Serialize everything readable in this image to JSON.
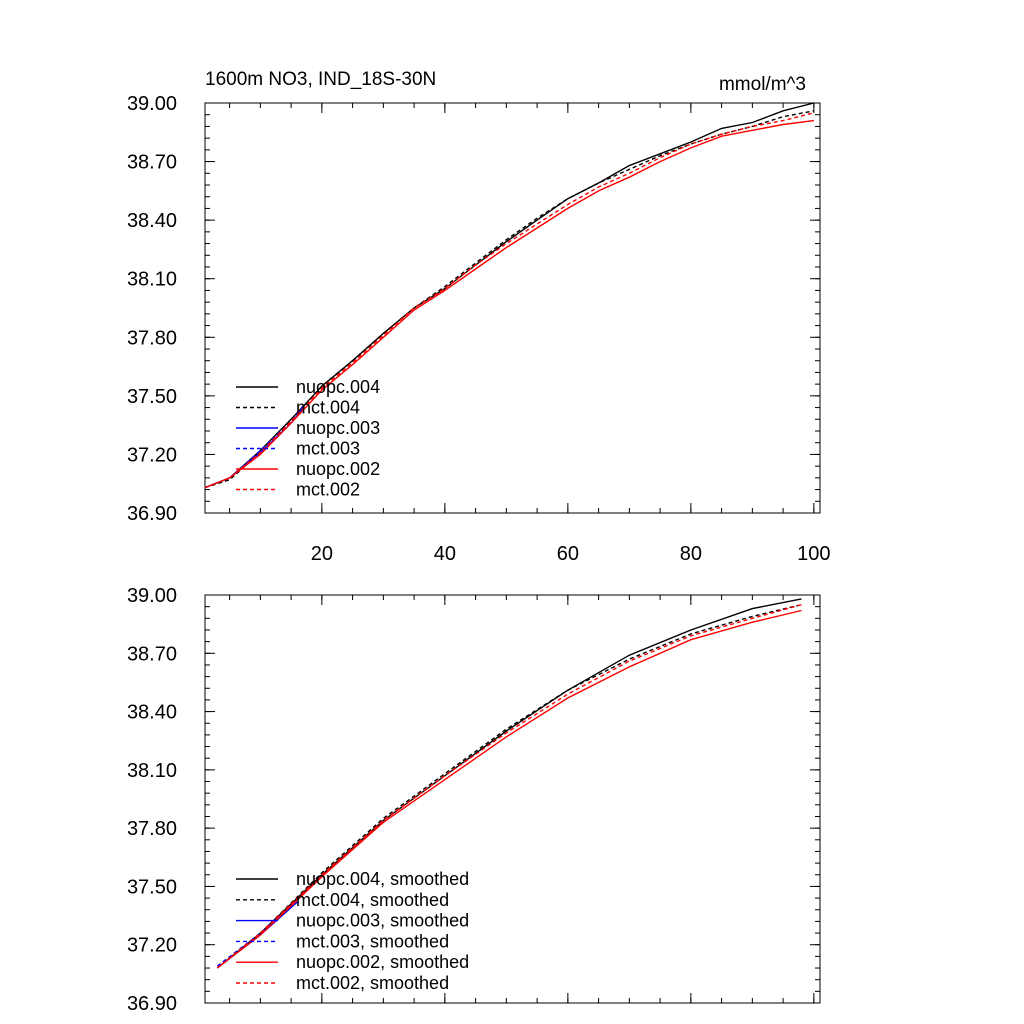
{
  "chart_data": [
    {
      "type": "line",
      "title": "1600m NO3, IND_18S-30N",
      "units": "mmol/m^3",
      "xlim": [
        1,
        101
      ],
      "ylim": [
        36.9,
        39.0
      ],
      "xticks": [
        20,
        40,
        60,
        80,
        100
      ],
      "xtick_labels": [
        "20",
        "40",
        "60",
        "80",
        "100"
      ],
      "yticks": [
        36.9,
        37.2,
        37.5,
        37.8,
        38.1,
        38.4,
        38.7,
        39.0
      ],
      "ytick_labels": [
        "36.90",
        "37.20",
        "37.50",
        "37.80",
        "38.10",
        "38.40",
        "38.70",
        "39.00"
      ],
      "legend_position": "lower-left",
      "series": [
        {
          "name": "nuopc.004",
          "color": "#000000",
          "dash": "solid",
          "points": [
            [
              1,
              37.03
            ],
            [
              5,
              37.08
            ],
            [
              10,
              37.22
            ],
            [
              15,
              37.38
            ],
            [
              20,
              37.55
            ],
            [
              25,
              37.68
            ],
            [
              30,
              37.82
            ],
            [
              35,
              37.95
            ],
            [
              40,
              38.05
            ],
            [
              45,
              38.17
            ],
            [
              50,
              38.29
            ],
            [
              55,
              38.4
            ],
            [
              60,
              38.51
            ],
            [
              65,
              38.59
            ],
            [
              70,
              38.68
            ],
            [
              75,
              38.74
            ],
            [
              80,
              38.8
            ],
            [
              85,
              38.87
            ],
            [
              90,
              38.9
            ],
            [
              95,
              38.96
            ],
            [
              100,
              39.0
            ]
          ]
        },
        {
          "name": "mct.004",
          "color": "#000000",
          "dash": "dashed",
          "points": [
            [
              1,
              37.03
            ],
            [
              5,
              37.07
            ],
            [
              10,
              37.21
            ],
            [
              15,
              37.37
            ],
            [
              20,
              37.55
            ],
            [
              25,
              37.68
            ],
            [
              30,
              37.82
            ],
            [
              35,
              37.95
            ],
            [
              40,
              38.06
            ],
            [
              45,
              38.18
            ],
            [
              50,
              38.3
            ],
            [
              55,
              38.41
            ],
            [
              60,
              38.51
            ],
            [
              65,
              38.59
            ],
            [
              70,
              38.66
            ],
            [
              75,
              38.73
            ],
            [
              80,
              38.79
            ],
            [
              85,
              38.84
            ],
            [
              90,
              38.88
            ],
            [
              95,
              38.93
            ],
            [
              100,
              38.96
            ]
          ]
        },
        {
          "name": "nuopc.003",
          "color": "#0000ff",
          "dash": "solid",
          "points": [
            [
              1,
              37.03
            ],
            [
              5,
              37.08
            ],
            [
              10,
              37.21
            ],
            [
              15,
              37.36
            ],
            [
              17,
              37.44
            ]
          ]
        },
        {
          "name": "mct.003",
          "color": "#0000ff",
          "dash": "dashed",
          "points": [
            [
              1,
              37.03
            ],
            [
              5,
              37.08
            ],
            [
              10,
              37.22
            ],
            [
              15,
              37.37
            ],
            [
              17,
              37.45
            ]
          ]
        },
        {
          "name": "nuopc.002",
          "color": "#ff0000",
          "dash": "solid",
          "points": [
            [
              1,
              37.03
            ],
            [
              5,
              37.08
            ],
            [
              10,
              37.2
            ],
            [
              15,
              37.36
            ],
            [
              20,
              37.53
            ],
            [
              25,
              37.66
            ],
            [
              30,
              37.8
            ],
            [
              35,
              37.94
            ],
            [
              40,
              38.04
            ],
            [
              45,
              38.15
            ],
            [
              50,
              38.26
            ],
            [
              55,
              38.36
            ],
            [
              60,
              38.46
            ],
            [
              65,
              38.55
            ],
            [
              70,
              38.62
            ],
            [
              75,
              38.7
            ],
            [
              80,
              38.77
            ],
            [
              85,
              38.83
            ],
            [
              90,
              38.86
            ],
            [
              95,
              38.89
            ],
            [
              100,
              38.91
            ]
          ]
        },
        {
          "name": "mct.002",
          "color": "#ff0000",
          "dash": "dashed",
          "points": [
            [
              1,
              37.03
            ],
            [
              5,
              37.08
            ],
            [
              10,
              37.21
            ],
            [
              15,
              37.37
            ],
            [
              20,
              37.54
            ],
            [
              25,
              37.67
            ],
            [
              30,
              37.81
            ],
            [
              35,
              37.95
            ],
            [
              40,
              38.05
            ],
            [
              45,
              38.17
            ],
            [
              50,
              38.28
            ],
            [
              55,
              38.38
            ],
            [
              60,
              38.48
            ],
            [
              65,
              38.57
            ],
            [
              70,
              38.64
            ],
            [
              75,
              38.72
            ],
            [
              80,
              38.79
            ],
            [
              85,
              38.84
            ],
            [
              90,
              38.88
            ],
            [
              95,
              38.91
            ],
            [
              100,
              38.95
            ]
          ]
        }
      ]
    },
    {
      "type": "line",
      "xlim": [
        1,
        101
      ],
      "ylim": [
        36.9,
        39.0
      ],
      "xticks": [
        20,
        40,
        60,
        80,
        100
      ],
      "yticks": [
        36.9,
        37.2,
        37.5,
        37.8,
        38.1,
        38.4,
        38.7,
        39.0
      ],
      "ytick_labels": [
        "36.90",
        "37.20",
        "37.50",
        "37.80",
        "38.10",
        "38.40",
        "38.70",
        "39.00"
      ],
      "legend_position": "lower-left",
      "series": [
        {
          "name": "nuopc.004, smoothed",
          "color": "#000000",
          "dash": "solid",
          "points": [
            [
              3,
              37.08
            ],
            [
              10,
              37.26
            ],
            [
              20,
              37.56
            ],
            [
              30,
              37.84
            ],
            [
              40,
              38.07
            ],
            [
              50,
              38.3
            ],
            [
              60,
              38.51
            ],
            [
              70,
              38.69
            ],
            [
              80,
              38.82
            ],
            [
              90,
              38.93
            ],
            [
              98,
              38.98
            ]
          ]
        },
        {
          "name": "mct.004, smoothed",
          "color": "#000000",
          "dash": "dashed",
          "points": [
            [
              3,
              37.08
            ],
            [
              10,
              37.26
            ],
            [
              20,
              37.57
            ],
            [
              30,
              37.85
            ],
            [
              40,
              38.08
            ],
            [
              50,
              38.31
            ],
            [
              60,
              38.51
            ],
            [
              70,
              38.67
            ],
            [
              80,
              38.8
            ],
            [
              90,
              38.89
            ],
            [
              98,
              38.95
            ]
          ]
        },
        {
          "name": "nuopc.003, smoothed",
          "color": "#0000ff",
          "dash": "solid",
          "points": [
            [
              3,
              37.08
            ],
            [
              10,
              37.25
            ],
            [
              16,
              37.42
            ]
          ]
        },
        {
          "name": "mct.003, smoothed",
          "color": "#0000ff",
          "dash": "dashed",
          "points": [
            [
              3,
              37.09
            ],
            [
              10,
              37.26
            ],
            [
              16,
              37.43
            ]
          ]
        },
        {
          "name": "nuopc.002, smoothed",
          "color": "#ff0000",
          "dash": "solid",
          "points": [
            [
              3,
              37.08
            ],
            [
              10,
              37.25
            ],
            [
              20,
              37.55
            ],
            [
              30,
              37.83
            ],
            [
              40,
              38.05
            ],
            [
              50,
              38.27
            ],
            [
              60,
              38.47
            ],
            [
              70,
              38.63
            ],
            [
              80,
              38.77
            ],
            [
              90,
              38.86
            ],
            [
              98,
              38.92
            ]
          ]
        },
        {
          "name": "mct.002, smoothed",
          "color": "#ff0000",
          "dash": "dashed",
          "points": [
            [
              3,
              37.08
            ],
            [
              10,
              37.26
            ],
            [
              20,
              37.56
            ],
            [
              30,
              37.84
            ],
            [
              40,
              38.07
            ],
            [
              50,
              38.29
            ],
            [
              60,
              38.49
            ],
            [
              70,
              38.66
            ],
            [
              80,
              38.79
            ],
            [
              90,
              38.88
            ],
            [
              98,
              38.95
            ]
          ]
        }
      ]
    }
  ]
}
